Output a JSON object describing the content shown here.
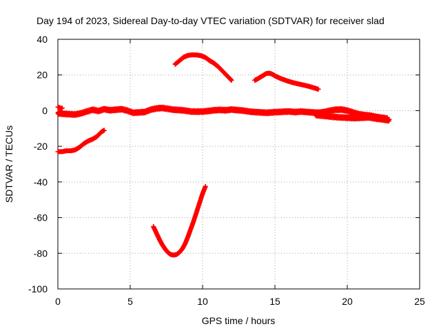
{
  "chart_data": {
    "type": "scatter",
    "title": "Day 194 of 2023, Sidereal Day-to-day VTEC variation (SDTVAR) for receiver slad",
    "xlabel": "GPS time / hours",
    "ylabel": "SDTVAR / TECUs",
    "xlim": [
      0,
      25
    ],
    "ylim": [
      -100,
      40
    ],
    "xticks": [
      0,
      5,
      10,
      15,
      20,
      25
    ],
    "yticks": [
      -100,
      -80,
      -60,
      -40,
      -20,
      0,
      20,
      40
    ],
    "grid": true,
    "legend": "none",
    "marker": "plus",
    "color": "#ff0000",
    "series": [
      {
        "name": "main-band",
        "x": [
          0.0,
          0.4,
          0.8,
          1.2,
          1.6,
          2.0,
          2.4,
          2.8,
          3.2,
          3.6,
          4.0,
          4.4,
          4.8,
          5.2,
          5.6,
          6.0,
          6.4,
          6.8,
          7.2,
          7.6,
          8.0,
          8.4,
          8.8,
          9.2,
          9.6,
          10.0,
          10.4,
          10.8,
          11.2,
          11.6,
          12.0,
          12.4,
          12.8,
          13.2,
          13.6,
          14.0,
          14.4,
          14.8,
          15.2,
          15.6,
          16.0,
          16.4,
          16.8,
          17.2,
          17.6,
          18.0,
          18.4,
          18.8,
          19.2,
          19.6,
          20.0,
          20.4,
          20.8,
          21.2,
          21.6,
          22.0,
          22.4,
          22.8
        ],
        "y": [
          -1.5,
          -1.8,
          -2.0,
          -2.2,
          -1.5,
          -0.5,
          0.5,
          -0.2,
          0.8,
          0.2,
          0.5,
          0.8,
          0.0,
          -1.2,
          -1.0,
          -0.8,
          0.5,
          1.2,
          1.5,
          1.0,
          0.5,
          0.3,
          0.0,
          -0.5,
          -0.6,
          -0.5,
          -0.2,
          0.2,
          0.4,
          0.2,
          0.6,
          0.3,
          0.0,
          -0.5,
          -0.8,
          -1.0,
          -1.2,
          -1.0,
          -0.8,
          -0.6,
          -0.5,
          -0.8,
          -0.5,
          -0.8,
          -1.0,
          -1.2,
          -0.8,
          0.0,
          0.5,
          0.6,
          0.0,
          -1.0,
          -2.0,
          -2.5,
          -2.8,
          -3.5,
          -4.0,
          -4.5
        ]
      },
      {
        "name": "lower-band",
        "x": [
          17.8,
          18.5,
          19.0,
          19.5,
          20.0,
          20.5,
          21.0,
          21.5,
          22.0,
          22.5,
          22.9
        ],
        "y": [
          -2.5,
          -3.0,
          -3.5,
          -3.8,
          -4.0,
          -4.2,
          -4.0,
          -3.8,
          -4.5,
          -5.0,
          -5.5
        ]
      },
      {
        "name": "early-segment",
        "x": [
          0.0,
          0.1,
          0.2,
          0.3
        ],
        "y": [
          2.0,
          1.8,
          1.2,
          1.5
        ]
      },
      {
        "name": "segment-a",
        "x": [
          0.0,
          0.3,
          0.6,
          0.9,
          1.2,
          1.5,
          1.8,
          2.1,
          2.4,
          2.7,
          3.0,
          3.2
        ],
        "y": [
          -23.0,
          -23.0,
          -22.5,
          -22.5,
          -22.0,
          -20.5,
          -18.5,
          -17.0,
          -16.0,
          -14.5,
          -12.0,
          -11.0
        ]
      },
      {
        "name": "segment-b",
        "x": [
          6.6,
          6.8,
          7.0,
          7.2,
          7.4,
          7.6,
          7.8,
          8.0,
          8.2,
          8.4,
          8.6,
          8.8,
          9.0,
          9.2,
          9.4,
          9.6,
          9.8,
          10.0,
          10.2
        ],
        "y": [
          -65.0,
          -68.5,
          -72.0,
          -75.0,
          -77.5,
          -79.5,
          -80.7,
          -81.0,
          -80.7,
          -79.5,
          -77.5,
          -74.5,
          -70.5,
          -66.0,
          -61.5,
          -56.5,
          -51.5,
          -46.5,
          -42.5
        ]
      },
      {
        "name": "segment-c",
        "x": [
          8.1,
          8.4,
          8.7,
          9.0,
          9.3,
          9.6,
          9.9,
          10.2,
          10.5,
          10.8,
          11.1,
          11.4,
          11.7,
          12.0
        ],
        "y": [
          26.0,
          28.0,
          30.0,
          31.0,
          31.3,
          31.2,
          30.8,
          29.8,
          28.0,
          26.5,
          24.5,
          22.0,
          19.5,
          17.0
        ]
      },
      {
        "name": "segment-d",
        "x": [
          13.6,
          13.8,
          14.0,
          14.2,
          14.4,
          14.6,
          14.8,
          15.0,
          15.4,
          15.8,
          16.2,
          16.6,
          17.0,
          17.4,
          17.8,
          18.0
        ],
        "y": [
          17.0,
          17.8,
          18.8,
          19.8,
          20.8,
          21.0,
          20.5,
          19.5,
          18.0,
          16.8,
          15.8,
          15.0,
          14.3,
          13.5,
          12.5,
          12.0
        ]
      }
    ]
  }
}
